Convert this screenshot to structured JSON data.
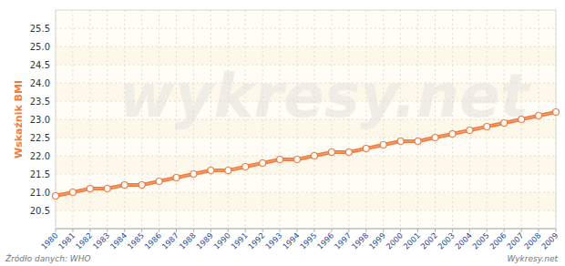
{
  "chart_data": {
    "type": "line",
    "y_label": "Wskaźnik BMI",
    "source": "Źródło danych: WHO",
    "credit": "Wykresy.net",
    "watermark": "wykresy.net",
    "x": [
      1980,
      1981,
      1982,
      1983,
      1984,
      1985,
      1986,
      1987,
      1988,
      1989,
      1990,
      1991,
      1992,
      1993,
      1994,
      1995,
      1996,
      1997,
      1998,
      1999,
      2000,
      2001,
      2002,
      2003,
      2004,
      2005,
      2006,
      2007,
      2008,
      2009
    ],
    "values": [
      20.9,
      21.0,
      21.1,
      21.1,
      21.2,
      21.2,
      21.3,
      21.4,
      21.5,
      21.6,
      21.6,
      21.7,
      21.8,
      21.9,
      21.9,
      22.0,
      22.1,
      22.1,
      22.2,
      22.3,
      22.4,
      22.4,
      22.5,
      22.6,
      22.7,
      22.8,
      22.9,
      23.0,
      23.1,
      23.2
    ],
    "color": "#f07b3f",
    "marker": "circle",
    "grid": true,
    "xlim": [
      1980,
      2009
    ],
    "xticks": [
      1980,
      1981,
      1982,
      1983,
      1984,
      1985,
      1986,
      1987,
      1988,
      1989,
      1990,
      1991,
      1992,
      1993,
      1994,
      1995,
      1996,
      1997,
      1998,
      1999,
      2000,
      2001,
      2002,
      2003,
      2004,
      2005,
      2006,
      2007,
      2008,
      2009
    ],
    "ylim": [
      20,
      26
    ],
    "yticks": [
      20.5,
      {
        "value": 21,
        "label": "21.0"
      },
      21.5,
      {
        "value": 22,
        "label": "22.0"
      },
      22.5,
      {
        "value": 23,
        "label": "23.0"
      },
      23.5,
      {
        "value": 24,
        "label": "24.0"
      },
      24.5,
      {
        "value": 25,
        "label": "25.0"
      },
      25.5
    ]
  }
}
